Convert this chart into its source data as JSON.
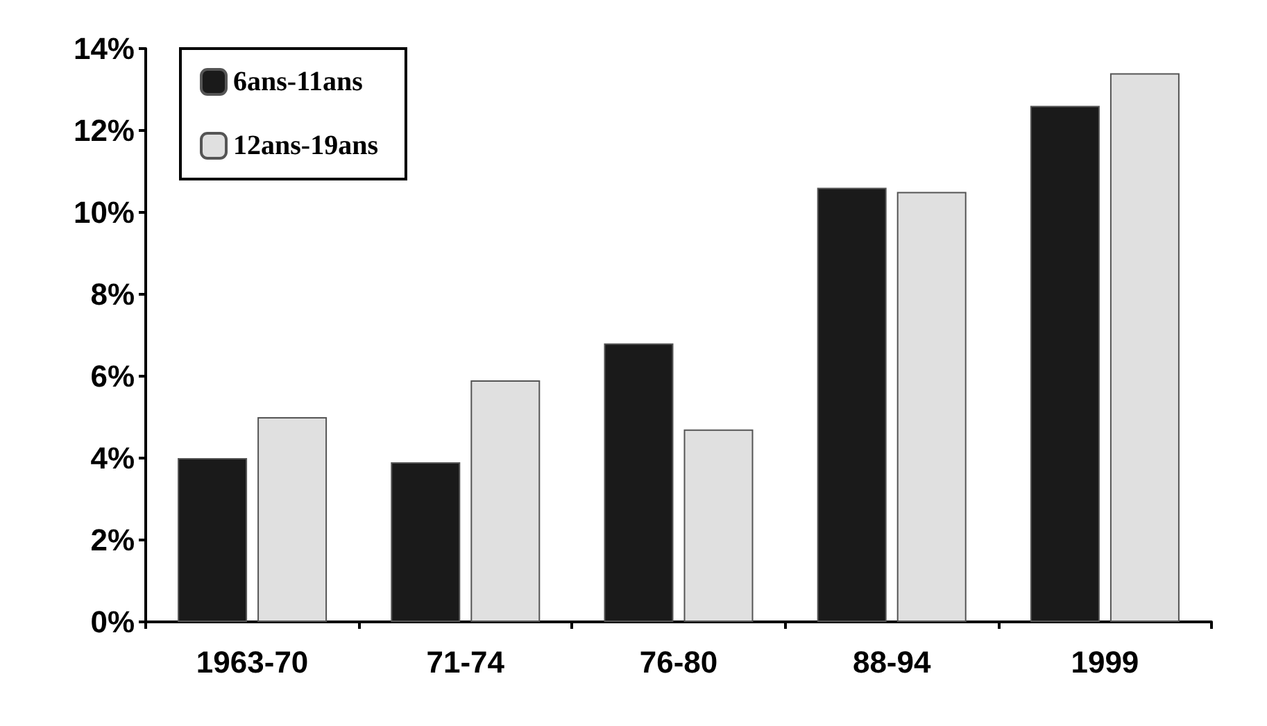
{
  "chart_data": {
    "type": "bar",
    "categories": [
      "1963-70",
      "71-74",
      "76-80",
      "88-94",
      "1999"
    ],
    "series": [
      {
        "name": "6ans-11ans",
        "color": "#1a1a1a",
        "values": [
          4.0,
          3.9,
          6.8,
          10.6,
          12.6
        ]
      },
      {
        "name": "12ans-19ans",
        "color": "#e0e0e0",
        "values": [
          5.0,
          5.9,
          4.7,
          10.5,
          13.4
        ]
      }
    ],
    "ylim": [
      0,
      14
    ],
    "yticks": [
      {
        "value": 0,
        "label": "0%"
      },
      {
        "value": 2,
        "label": "2%"
      },
      {
        "value": 4,
        "label": "4%"
      },
      {
        "value": 6,
        "label": "6%"
      },
      {
        "value": 8,
        "label": "8%"
      },
      {
        "value": 10,
        "label": "10%"
      },
      {
        "value": 12,
        "label": "12%"
      },
      {
        "value": 14,
        "label": "14%"
      }
    ],
    "grid": false,
    "legend": "top left"
  }
}
